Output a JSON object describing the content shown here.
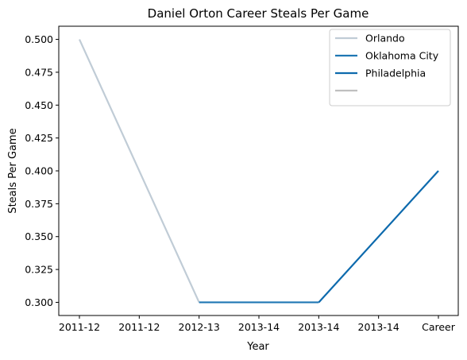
{
  "chart_data": {
    "type": "line",
    "title": "Daniel Orton Career Steals Per Game",
    "xlabel": "Year",
    "ylabel": "Steals Per Game",
    "categories": [
      "2011-12",
      "2011-12",
      "2012-13",
      "2013-14",
      "2013-14",
      "2013-14",
      "Career"
    ],
    "ylim": [
      0.29,
      0.51
    ],
    "yticks": [
      0.3,
      0.325,
      0.35,
      0.375,
      0.4,
      0.425,
      0.45,
      0.475,
      0.5
    ],
    "ytick_labels": [
      "0.300",
      "0.325",
      "0.350",
      "0.375",
      "0.400",
      "0.425",
      "0.450",
      "0.475",
      "0.500"
    ],
    "grid": false,
    "legend_position": "top-right",
    "series": [
      {
        "name": "Orlando",
        "color": "#c0ccd6",
        "points": [
          [
            0,
            0.5
          ],
          [
            2,
            0.3
          ]
        ]
      },
      {
        "name": "Oklahoma City",
        "color": "#1f77b4",
        "points": [
          [
            2,
            0.3
          ],
          [
            4,
            0.3
          ]
        ]
      },
      {
        "name": "Philadelphia",
        "color": "#0d6aad",
        "points": [
          [
            4,
            0.3
          ],
          [
            6,
            0.4
          ]
        ]
      },
      {
        "name": "",
        "color": "#bfbfbf",
        "points": []
      }
    ]
  }
}
